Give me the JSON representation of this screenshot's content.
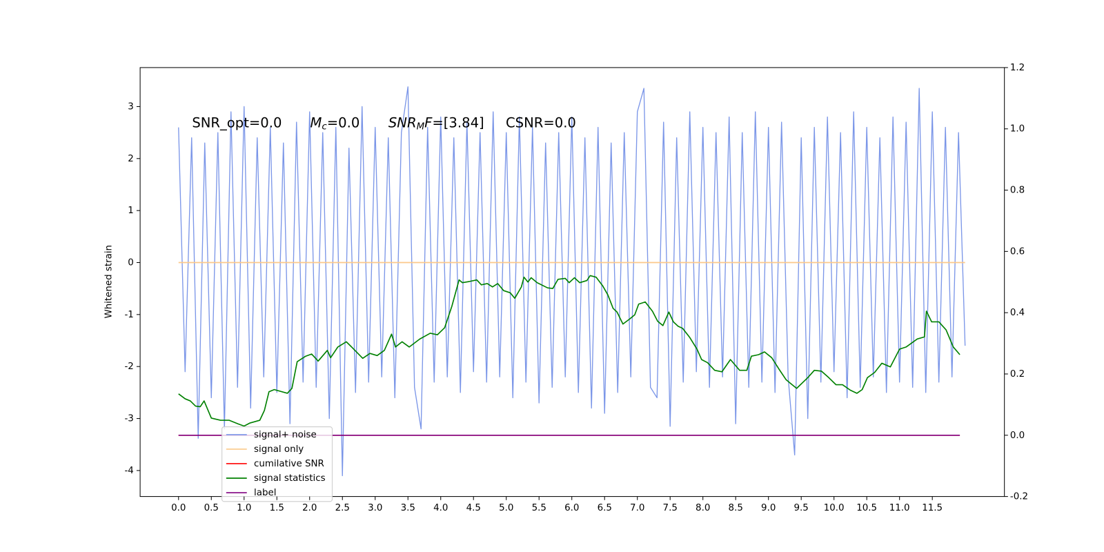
{
  "chart_data": {
    "type": "line",
    "ylabel": "Whitened strain",
    "annotation": [
      [
        {
          "text": "SNR_opt=0.0"
        }
      ],
      [
        {
          "text": "M",
          "math": true
        },
        {
          "text": "c",
          "math": true,
          "sub": true
        },
        {
          "text": "=0.0"
        }
      ],
      [
        {
          "text": "SNR",
          "math": true
        },
        {
          "text": "M",
          "math": true,
          "sub": true
        },
        {
          "text": "F",
          "math": true
        },
        {
          "text": "=[3.84]"
        }
      ],
      [
        {
          "text": "CSNR=0.0"
        }
      ]
    ],
    "xlim": [
      -0.586,
      12.6
    ],
    "ylim": [
      -4.5,
      3.75
    ],
    "y2lim": [
      -0.2,
      1.2
    ],
    "xticks": [
      {
        "value": 0,
        "label": "0.0"
      },
      0.5,
      {
        "value": 1,
        "label": "1.0"
      },
      1.5,
      {
        "value": 2,
        "label": "2.0"
      },
      2.5,
      {
        "value": 3,
        "label": "3.0"
      },
      3.5,
      {
        "value": 4,
        "label": "4.0"
      },
      4.5,
      {
        "value": 5,
        "label": "5.0"
      },
      5.5,
      {
        "value": 6,
        "label": "6.0"
      },
      6.5,
      {
        "value": 7,
        "label": "7.0"
      },
      7.5,
      {
        "value": 8,
        "label": "8.0"
      },
      8.5,
      {
        "value": 9,
        "label": "9.0"
      },
      9.5,
      {
        "value": 10,
        "label": "10.0"
      },
      10.5,
      {
        "value": 11,
        "label": "11.0"
      },
      11.5
    ],
    "yticks": [
      -4,
      -3,
      -2,
      -1,
      0,
      1,
      2,
      3
    ],
    "y2ticks": [
      -0.2,
      {
        "value": 0,
        "label": "0.0"
      },
      0.2,
      0.4,
      0.6,
      0.8,
      {
        "value": 1,
        "label": "1.0"
      },
      1.2
    ],
    "series": [
      {
        "name": "signal+ noise",
        "color": "#7b96e8",
        "x": [
          0,
          0.1,
          0.2,
          0.3,
          0.4,
          0.5,
          0.6,
          0.7,
          0.8,
          0.9,
          1,
          1.1,
          1.2,
          1.3,
          1.4,
          1.5,
          1.6,
          1.7,
          1.8,
          1.9,
          2,
          2.1,
          2.2,
          2.3,
          2.4,
          2.5,
          2.6,
          2.7,
          2.8,
          2.9,
          3,
          3.1,
          3.2,
          3.3,
          3.4,
          3.5,
          3.6,
          3.7,
          3.8,
          3.9,
          4,
          4.1,
          4.2,
          4.3,
          4.4,
          4.5,
          4.6,
          4.7,
          4.8,
          4.9,
          5,
          5.1,
          5.2,
          5.3,
          5.4,
          5.5,
          5.6,
          5.7,
          5.8,
          5.9,
          6,
          6.1,
          6.2,
          6.3,
          6.4,
          6.5,
          6.6,
          6.7,
          6.8,
          6.9,
          7,
          7.1,
          7.2,
          7.3,
          7.4,
          7.5,
          7.6,
          7.7,
          7.8,
          7.9,
          8,
          8.1,
          8.2,
          8.3,
          8.4,
          8.5,
          8.6,
          8.7,
          8.8,
          8.9,
          9,
          9.1,
          9.2,
          9.3,
          9.4,
          9.5,
          9.6,
          9.7,
          9.8,
          9.9,
          10,
          10.1,
          10.2,
          10.3,
          10.4,
          10.5,
          10.6,
          10.7,
          10.8,
          10.9,
          11,
          11.1,
          11.2,
          11.3,
          11.4,
          11.5,
          11.6,
          11.7,
          11.8,
          11.9,
          12
        ],
        "values": [
          2.6,
          -2.1,
          2.4,
          -3.38,
          2.3,
          -2.6,
          2.5,
          -3.2,
          2.9,
          -2.4,
          3.0,
          -2.8,
          2.4,
          -2.2,
          2.6,
          -2.5,
          2.3,
          -3.1,
          2.7,
          -2.3,
          2.9,
          -2.4,
          2.5,
          -3.0,
          2.6,
          -4.1,
          2.2,
          -2.5,
          3.0,
          -2.3,
          2.6,
          -2.2,
          2.4,
          -2.6,
          2.5,
          3.38,
          -2.4,
          -3.2,
          2.6,
          -2.3,
          2.8,
          -2.2,
          2.4,
          -2.5,
          2.7,
          -2.1,
          2.5,
          -2.3,
          2.9,
          -2.2,
          2.5,
          -2.6,
          2.8,
          -2.3,
          2.6,
          -2.7,
          2.3,
          -2.4,
          2.5,
          -2.2,
          2.8,
          -2.5,
          2.4,
          -2.8,
          2.6,
          -2.9,
          2.3,
          -2.5,
          2.5,
          -2.2,
          2.9,
          3.35,
          -2.4,
          -2.6,
          2.7,
          -3.15,
          2.4,
          -2.3,
          2.9,
          -2.1,
          2.6,
          -2.4,
          2.5,
          -2.2,
          2.8,
          -3.1,
          2.5,
          -2.4,
          2.9,
          -2.3,
          2.6,
          -2.5,
          2.7,
          -2.2,
          -3.7,
          2.4,
          -3.0,
          2.6,
          -2.3,
          2.8,
          -2.1,
          2.5,
          -2.6,
          2.9,
          -2.4,
          2.6,
          -2.2,
          2.4,
          -2.5,
          2.8,
          -2.3,
          2.7,
          -2.4,
          3.35,
          -2.5,
          2.9,
          -2.3,
          2.6,
          -2.2,
          2.5,
          -1.6
        ]
      },
      {
        "name": "signal only",
        "color": "#fbc98a",
        "x": [
          0,
          12
        ],
        "values": [
          0,
          0
        ]
      },
      {
        "name": "cumilative SNR",
        "color": "#ff0000",
        "axis": "y2",
        "x": [
          0,
          11.92
        ],
        "values": [
          0,
          0
        ]
      },
      {
        "name": "signal statistics",
        "color": "#008000",
        "axis": "y2",
        "x": [
          0,
          0.1,
          0.18,
          0.26,
          0.33,
          0.39,
          0.5,
          0.64,
          0.77,
          0.91,
          1.0,
          1.09,
          1.24,
          1.31,
          1.38,
          1.46,
          1.66,
          1.73,
          1.81,
          1.94,
          2.03,
          2.13,
          2.27,
          2.32,
          2.43,
          2.56,
          2.65,
          2.81,
          2.92,
          3.03,
          3.14,
          3.25,
          3.31,
          3.41,
          3.52,
          3.68,
          3.84,
          3.95,
          4.06,
          4.17,
          4.28,
          4.33,
          4.44,
          4.55,
          4.62,
          4.71,
          4.79,
          4.87,
          4.96,
          5.06,
          5.13,
          5.23,
          5.27,
          5.33,
          5.38,
          5.47,
          5.63,
          5.71,
          5.79,
          5.9,
          5.96,
          6.04,
          6.12,
          6.23,
          6.28,
          6.37,
          6.47,
          6.55,
          6.63,
          6.69,
          6.78,
          6.88,
          6.96,
          7.02,
          7.12,
          7.23,
          7.31,
          7.39,
          7.48,
          7.55,
          7.62,
          7.69,
          7.8,
          7.91,
          7.98,
          8.07,
          8.18,
          8.29,
          8.42,
          8.56,
          8.67,
          8.74,
          8.85,
          8.94,
          9.05,
          9.16,
          9.27,
          9.43,
          9.6,
          9.7,
          9.81,
          9.92,
          10.03,
          10.13,
          10.25,
          10.35,
          10.43,
          10.51,
          10.62,
          10.73,
          10.86,
          11.0,
          11.1,
          11.27,
          11.38,
          11.41,
          11.49,
          11.6,
          11.71,
          11.82,
          11.92
        ],
        "values": [
          0.135,
          0.119,
          0.112,
          0.095,
          0.093,
          0.112,
          0.056,
          0.049,
          0.049,
          0.037,
          0.03,
          0.04,
          0.049,
          0.081,
          0.142,
          0.149,
          0.137,
          0.153,
          0.24,
          0.258,
          0.265,
          0.242,
          0.277,
          0.253,
          0.288,
          0.305,
          0.286,
          0.251,
          0.267,
          0.26,
          0.277,
          0.33,
          0.288,
          0.305,
          0.288,
          0.314,
          0.333,
          0.328,
          0.351,
          0.421,
          0.507,
          0.498,
          0.502,
          0.507,
          0.491,
          0.495,
          0.484,
          0.495,
          0.472,
          0.465,
          0.447,
          0.484,
          0.516,
          0.5,
          0.514,
          0.498,
          0.481,
          0.479,
          0.509,
          0.512,
          0.498,
          0.514,
          0.498,
          0.505,
          0.521,
          0.516,
          0.488,
          0.458,
          0.414,
          0.402,
          0.363,
          0.379,
          0.393,
          0.428,
          0.435,
          0.405,
          0.372,
          0.358,
          0.402,
          0.37,
          0.356,
          0.349,
          0.319,
          0.281,
          0.247,
          0.237,
          0.212,
          0.207,
          0.247,
          0.212,
          0.212,
          0.258,
          0.263,
          0.272,
          0.253,
          0.216,
          0.181,
          0.153,
          0.188,
          0.212,
          0.209,
          0.188,
          0.165,
          0.165,
          0.147,
          0.137,
          0.149,
          0.188,
          0.205,
          0.235,
          0.223,
          0.281,
          0.288,
          0.314,
          0.321,
          0.405,
          0.37,
          0.37,
          0.344,
          0.288,
          0.263
        ]
      },
      {
        "name": "label",
        "color": "#800080",
        "axis": "y2",
        "x": [
          0,
          11.92
        ],
        "values": [
          0,
          0
        ]
      }
    ]
  }
}
